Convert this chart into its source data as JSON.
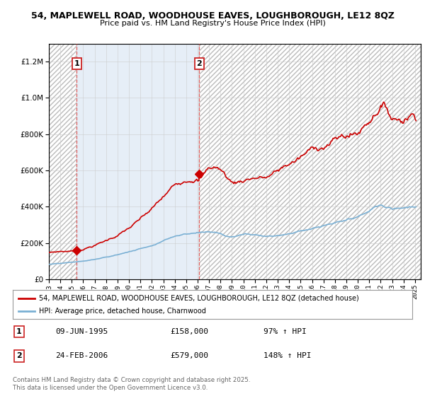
{
  "title_line1": "54, MAPLEWELL ROAD, WOODHOUSE EAVES, LOUGHBOROUGH, LE12 8QZ",
  "title_line2": "Price paid vs. HM Land Registry's House Price Index (HPI)",
  "legend_line1": "54, MAPLEWELL ROAD, WOODHOUSE EAVES, LOUGHBOROUGH, LE12 8QZ (detached house)",
  "legend_line2": "HPI: Average price, detached house, Charnwood",
  "footnote": "Contains HM Land Registry data © Crown copyright and database right 2025.\nThis data is licensed under the Open Government Licence v3.0.",
  "sale1_date": "09-JUN-1995",
  "sale1_price": "£158,000",
  "sale1_hpi": "97% ↑ HPI",
  "sale2_date": "24-FEB-2006",
  "sale2_price": "£579,000",
  "sale2_hpi": "148% ↑ HPI",
  "red_color": "#cc0000",
  "blue_color": "#7ab0d4",
  "bg_color": "#ffffff",
  "plot_bg": "#ffffff",
  "ylim": [
    0,
    1300000
  ],
  "xlim_start": 1993.0,
  "xlim_end": 2025.5,
  "sale1_x": 1995.44,
  "sale1_y": 158000,
  "sale2_x": 2006.15,
  "sale2_y": 579000
}
